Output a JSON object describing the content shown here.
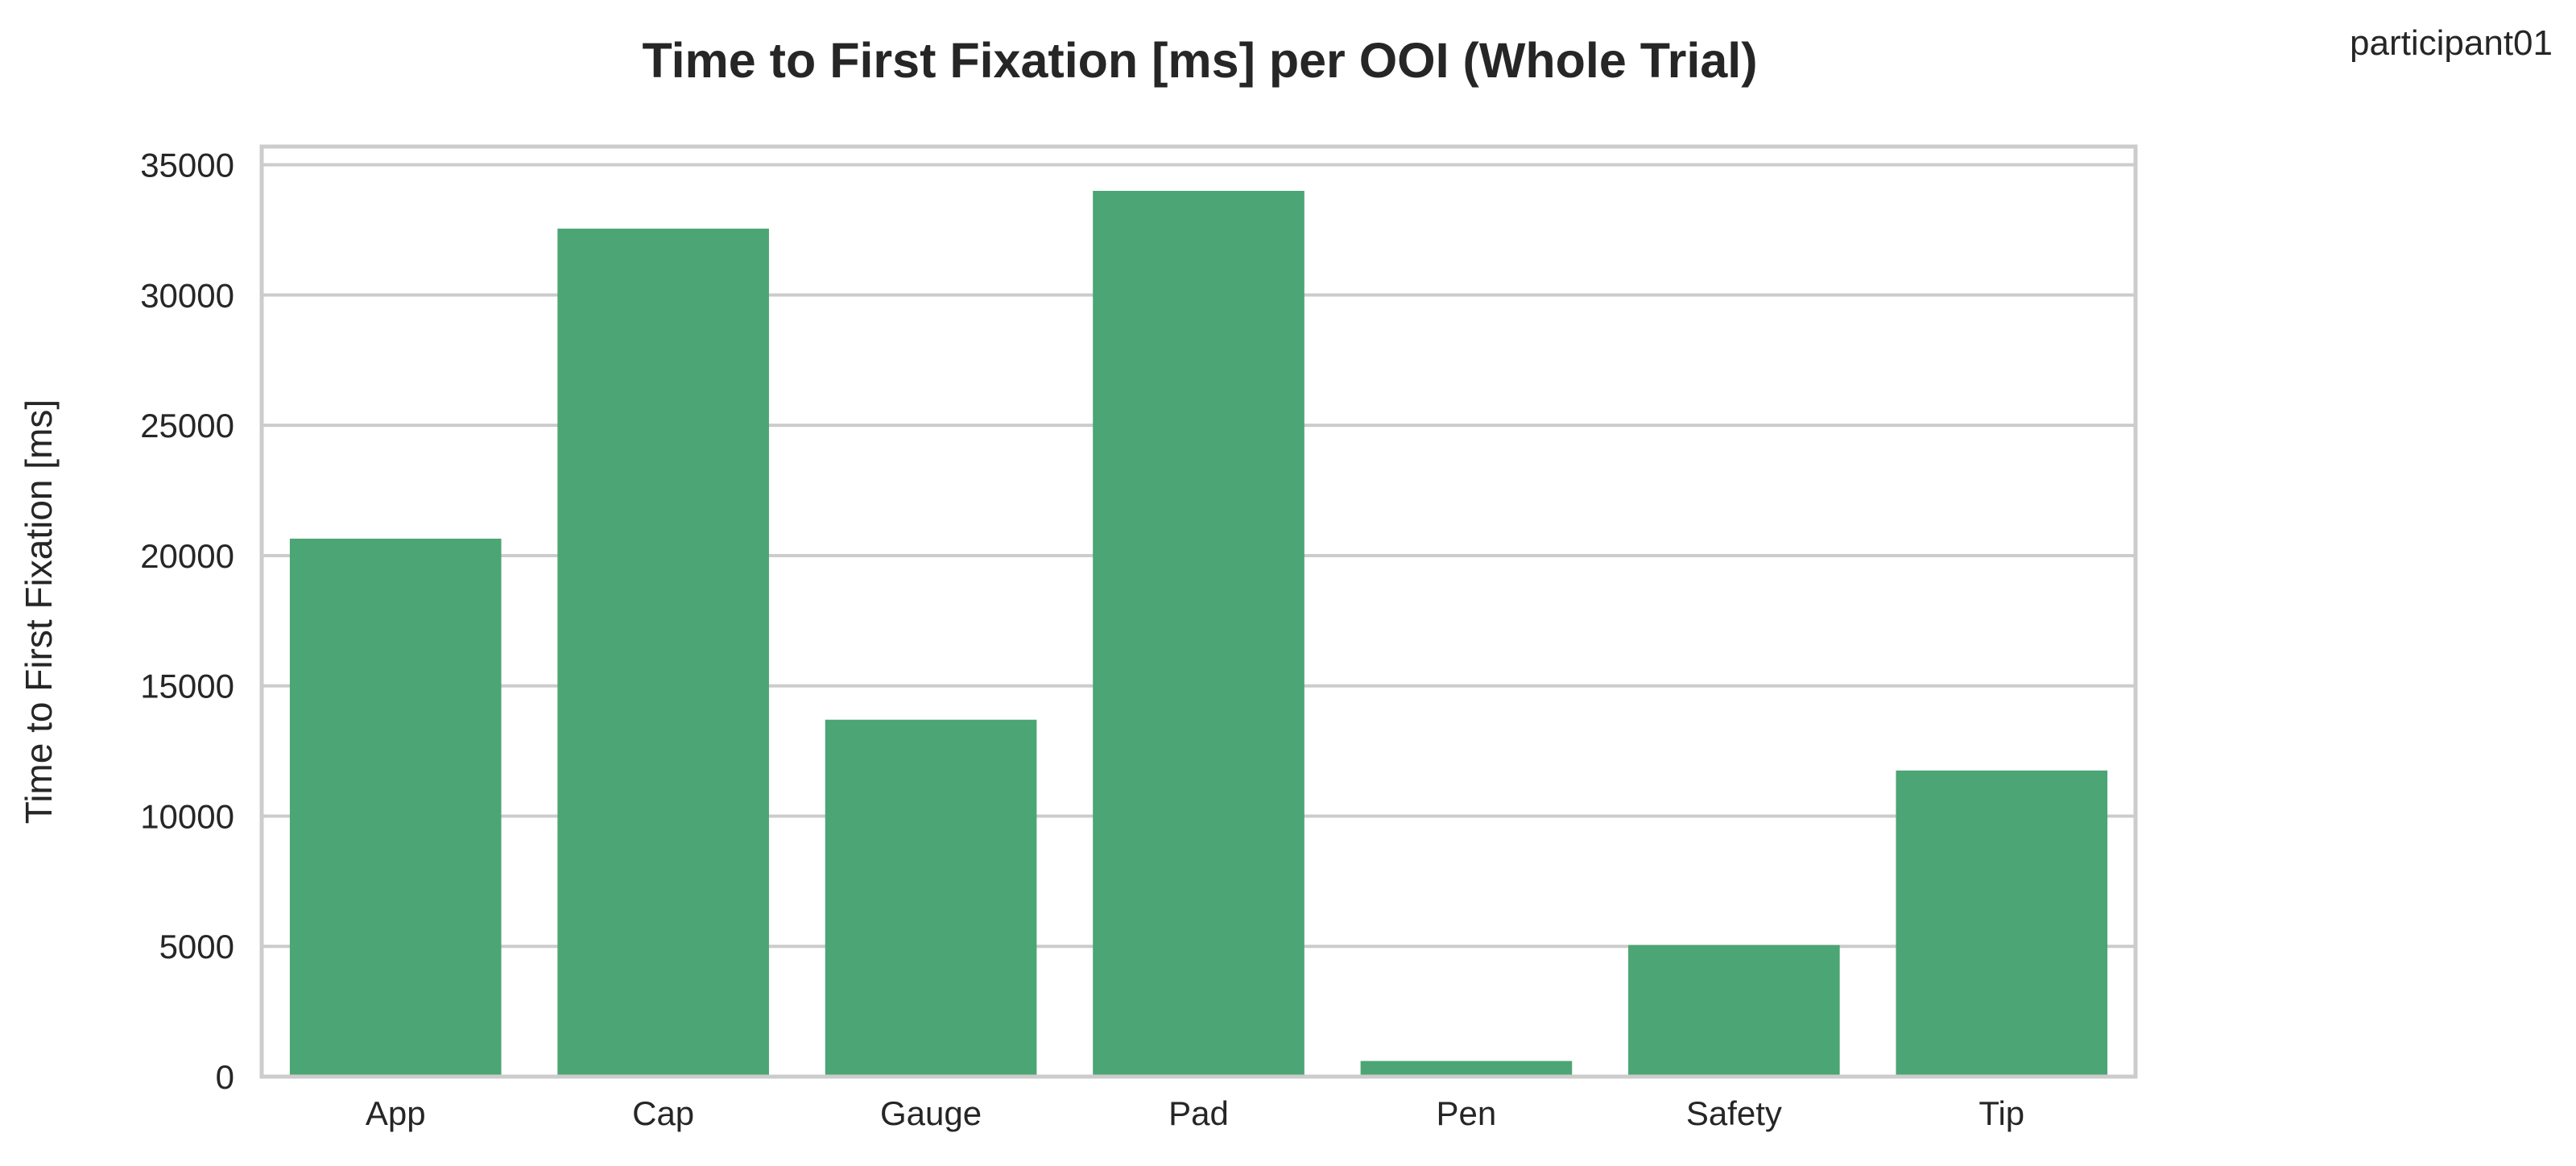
{
  "corner_label": "participant01",
  "colors": {
    "bar": "#4ca574",
    "grid": "#cccccc",
    "frame": "#cccccc",
    "background": "#ffffff",
    "text": "#262626"
  },
  "chart_data": {
    "type": "bar",
    "title": "Time to First Fixation [ms] per OOI (Whole Trial)",
    "xlabel": "",
    "ylabel": "Time to First Fixation [ms]",
    "categories": [
      "App",
      "Cap",
      "Gauge",
      "Pad",
      "Pen",
      "Safety",
      "Tip"
    ],
    "values": [
      20650,
      32550,
      13700,
      34000,
      600,
      5050,
      11750
    ],
    "ylim": [
      0,
      35700
    ],
    "yticks": [
      0,
      5000,
      10000,
      15000,
      20000,
      25000,
      30000,
      35000
    ],
    "grid": "horizontal",
    "legend": "none"
  }
}
